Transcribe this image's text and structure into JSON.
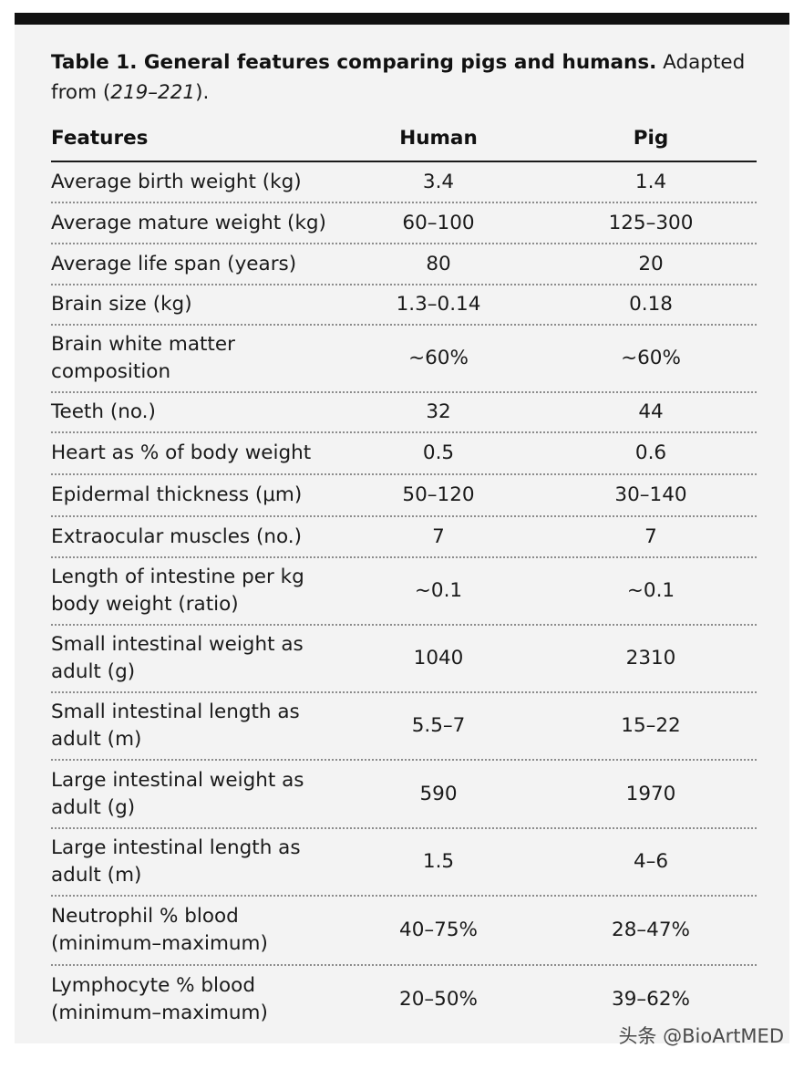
{
  "caption": {
    "bold": "Table 1. General features comparing pigs and humans.",
    "text_before_ref": " Adapted from (",
    "ref": "219–221",
    "text_after_ref": ")."
  },
  "headers": {
    "feature": "Features",
    "human": "Human",
    "pig": "Pig"
  },
  "rows": [
    {
      "feature": "Average birth weight (kg)",
      "human": "3.4",
      "pig": "1.4"
    },
    {
      "feature": "Average mature weight (kg)",
      "human": "60–100",
      "pig": "125–300"
    },
    {
      "feature": "Average life span (years)",
      "human": "80",
      "pig": "20"
    },
    {
      "feature": "Brain size (kg)",
      "human": "1.3–0.14",
      "pig": "0.18"
    },
    {
      "feature": "Brain white matter composition",
      "human": "~60%",
      "pig": "~60%"
    },
    {
      "feature": "Teeth (no.)",
      "human": "32",
      "pig": "44"
    },
    {
      "feature": "Heart as % of body weight",
      "human": "0.5",
      "pig": "0.6"
    },
    {
      "feature": "Epidermal thickness (μm)",
      "human": "50–120",
      "pig": "30–140"
    },
    {
      "feature": "Extraocular muscles (no.)",
      "human": "7",
      "pig": "7"
    },
    {
      "feature": "Length of intestine per kg body weight (ratio)",
      "human": "~0.1",
      "pig": "~0.1"
    },
    {
      "feature": "Small intestinal weight as adult (g)",
      "human": "1040",
      "pig": "2310"
    },
    {
      "feature": "Small intestinal length as adult (m)",
      "human": "5.5–7",
      "pig": "15–22"
    },
    {
      "feature": "Large intestinal weight as adult (g)",
      "human": "590",
      "pig": "1970"
    },
    {
      "feature": "Large intestinal length as adult (m)",
      "human": "1.5",
      "pig": "4–6"
    },
    {
      "feature": "Neutrophil % blood (minimum–maximum)",
      "human": "40–75%",
      "pig": "28–47%"
    },
    {
      "feature": "Lymphocyte % blood (minimum–maximum)",
      "human": "20–50%",
      "pig": "39–62%"
    }
  ],
  "watermark": "头条 @BioArtMED"
}
